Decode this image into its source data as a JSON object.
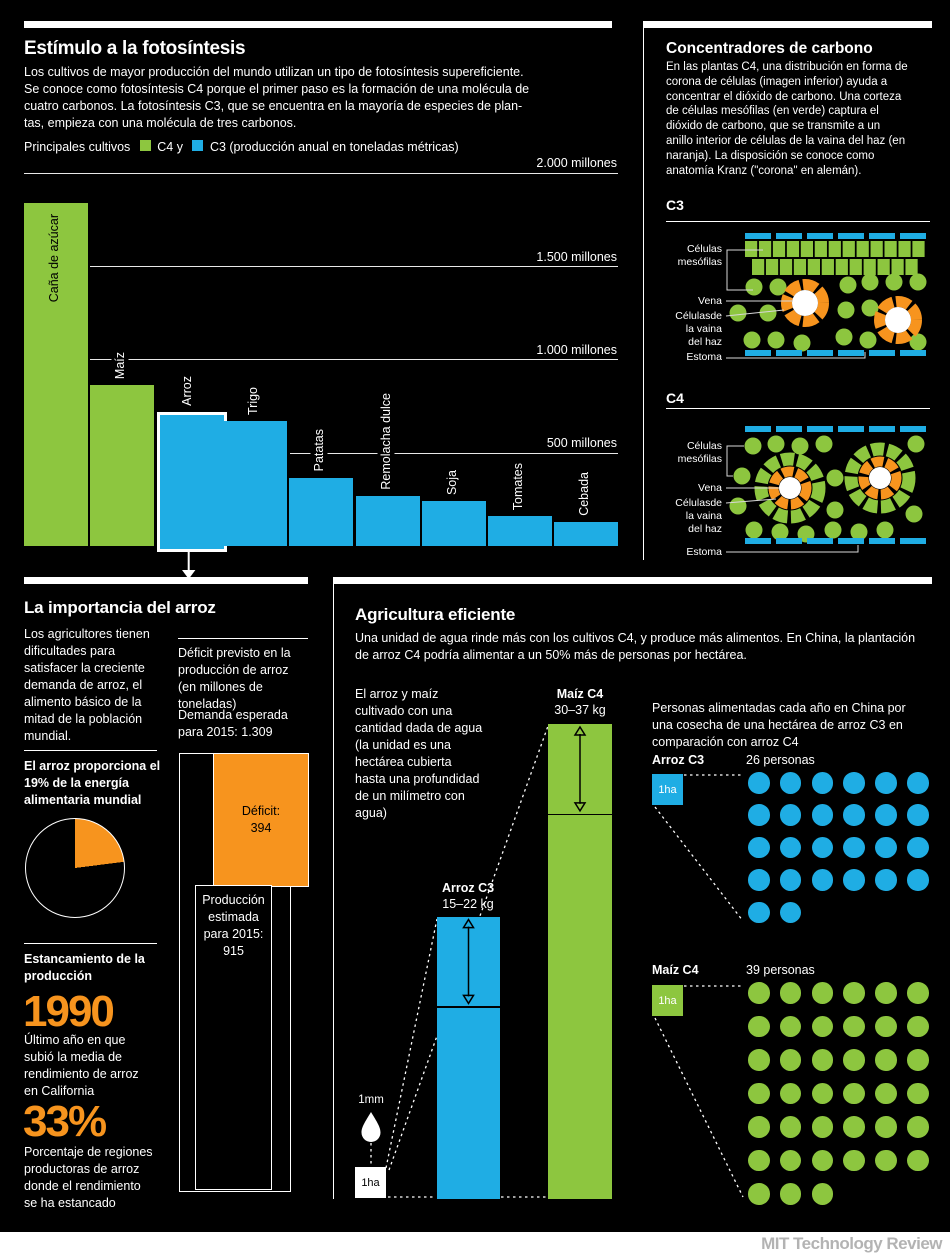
{
  "colors": {
    "green": "#8dc63f",
    "blue": "#1fade4",
    "orange": "#f7941e",
    "leader": "#d8d8d8"
  },
  "photosynthesis": {
    "title": "Estímulo a la fotosíntesis",
    "body": "Los cultivos de mayor producción del mundo utilizan un tipo de fotosíntesis supereficiente.\nSe conoce como fotosíntesis C4 porque el primer paso es la formación de una molécula de\ncuatro carbonos. La fotosíntesis C3, que se encuentra en la mayoría de especies de plan-\ntas, empieza con una molécula de tres carbonos.",
    "legend_prefix": "Principales cultivos",
    "legend_c4": "C4 y",
    "legend_c3": "C3 (producción anual en toneladas métricas)"
  },
  "carbon": {
    "title": "Concentradores de carbono",
    "body": "En las plantas C4, una distribución en forma de\ncorona de células (imagen inferior) ayuda a\nconcentrar el dióxido de carbono. Una corteza\nde células mesófilas (en verde) captura el\ndióxido de carbono, que se transmite a un\nanillo interior de células de la vaina del haz (en\nnaranja). La disposición se conoce como\nanatomía Kranz (\"corona\" en alemán).",
    "c3_heading": "C3",
    "c4_heading": "C4",
    "cell_labels": {
      "mesophyll": "Células\nmesófilas",
      "vein": "Vena",
      "bundle_sheath": "Célulasde\nla vaina\ndel haz",
      "stoma": "Estoma"
    }
  },
  "rice": {
    "title": "La importancia del arroz",
    "body": "Los agricultores tienen\ndificultades para\nsatisfacer la creciente\ndemanda de arroz, el\nalimento básico de la\nmitad de la población\nmundial.",
    "energy_heading": "El arroz proporciona el\n19% de la energía\nalimentaria mundial",
    "stagnation_heading": "Estancamiento de la\nproducción",
    "stat1_value": "1990",
    "stat1_desc": "Último año en que\nsubió la media de\nrendimiento de arroz\nen California",
    "stat2_value": "33%",
    "stat2_desc": "Porcentaje de regiones\nproductoras de arroz\ndonde el rendimiento\nse ha estancado"
  },
  "agriculture": {
    "title": "Agricultura eficiente",
    "body": "Una unidad de agua rinde más con los cultivos C4, y produce más alimentos. En China, la plantación\nde arroz C4 podría alimentar a un 50% más de personas por hectárea.",
    "water_note": "El arroz y maíz\ncultivado con una\ncantidad dada de agua\n(la unidad es una\nhectárea cubierta\nhasta una profundidad\nde un milímetro con\nagua)",
    "people_note": "Personas alimentadas cada año en China por\nuna cosecha de una hectárea de arroz C3 en\ncomparación con arroz C4",
    "mm_label": "1mm",
    "ha_label": "1ha"
  },
  "footer": {
    "brand": "MIT Technology Review"
  },
  "chart_data": [
    {
      "type": "bar",
      "title": "Principales cultivos C4 y C3 (producción anual en toneladas métricas)",
      "categories": [
        "Caña de azúcar",
        "Maíz",
        "Arroz",
        "Trigo",
        "Patatas",
        "Remolacha dulce",
        "Soja",
        "Tomates",
        "Cebada"
      ],
      "values": [
        1840,
        860,
        720,
        670,
        365,
        270,
        240,
        160,
        130
      ],
      "series_type": [
        "C4",
        "C4",
        "C3",
        "C3",
        "C3",
        "C3",
        "C3",
        "C3",
        "C3"
      ],
      "highlighted": "Arroz",
      "ylim": [
        0,
        2000
      ],
      "gridlines": [
        2000,
        1500,
        1000,
        500
      ],
      "gridline_labels": [
        "2.000 millones",
        "1.500 millones",
        "1.000 millones",
        "500 millones"
      ]
    },
    {
      "type": "pie",
      "title": "El arroz proporciona el 19% de la energía alimentaria mundial",
      "slices": [
        {
          "label": "arroz",
          "pct": 19
        },
        {
          "label": "resto",
          "pct": 81
        }
      ]
    },
    {
      "type": "bar",
      "title": "Déficit previsto en la\nproducción de arroz\n(en millones de\ntoneladas)",
      "demand_label": "Demanda esperada\npara 2015: 1.309",
      "total": 1309,
      "segments": [
        {
          "label": "Déficit:\n394",
          "value": 394
        },
        {
          "label": "Producción\nestimada\npara 2015:\n915",
          "value": 915
        }
      ]
    },
    {
      "type": "bar",
      "title": "El arroz y maíz cultivado con una cantidad dada de agua",
      "bars": [
        {
          "label": "Maíz C4",
          "range_label": "30–37 kg",
          "min": 30,
          "max": 37,
          "series": "C4"
        },
        {
          "label": "Arroz C3",
          "range_label": "15–22 kg",
          "min": 15,
          "max": 22,
          "series": "C3"
        }
      ],
      "unit": "kg por 1 ha cubierta con 1 mm de agua"
    },
    {
      "type": "pictogram",
      "title": "Personas alimentadas cada año en China por una cosecha de una hectárea",
      "rows": [
        {
          "label": "Arroz C3",
          "count": 26,
          "count_label": "26 personas",
          "series": "C3",
          "unit": "1ha"
        },
        {
          "label": "Maíz C4",
          "count": 39,
          "count_label": "39 personas",
          "series": "C4",
          "unit": "1ha"
        }
      ]
    }
  ]
}
